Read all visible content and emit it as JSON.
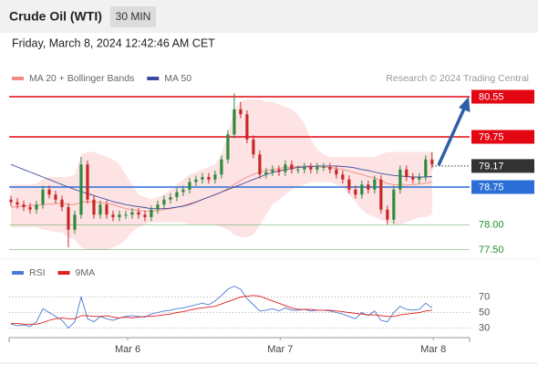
{
  "header": {
    "title": "Crude Oil (WTI)",
    "interval": "30 MIN",
    "timestamp": "Friday, March 8, 2024 12:42:46 AM CET",
    "credit": "Research © 2024 Trading Central"
  },
  "chart_data": [
    {
      "type": "candlestick",
      "xlim": [
        0,
        66.6
      ],
      "ylim": [
        77.25,
        81.1
      ],
      "up_color": "#2e8b3e",
      "down_color": "#c62828",
      "open": [
        78.5,
        78.45,
        78.4,
        78.35,
        78.3,
        78.4,
        78.7,
        78.6,
        78.5,
        78.35,
        77.9,
        78.2,
        79.2,
        78.5,
        78.2,
        78.4,
        78.2,
        78.15,
        78.2,
        78.2,
        78.25,
        78.2,
        78.15,
        78.3,
        78.4,
        78.5,
        78.55,
        78.65,
        78.7,
        78.85,
        78.9,
        78.95,
        78.9,
        79.0,
        79.3,
        79.8,
        80.3,
        80.2,
        79.7,
        79.4,
        79.0,
        79.05,
        79.1,
        79.05,
        79.2,
        79.1,
        79.1,
        79.15,
        79.1,
        79.15,
        79.15,
        79.1,
        79.0,
        78.9,
        78.7,
        78.6,
        78.8,
        78.7,
        78.9,
        78.3,
        78.1,
        78.7,
        79.1,
        78.95,
        78.9,
        78.95,
        79.3
      ],
      "high": [
        78.58,
        78.53,
        78.48,
        78.43,
        78.48,
        78.78,
        78.78,
        78.68,
        78.58,
        78.43,
        78.28,
        79.35,
        79.28,
        78.58,
        78.48,
        78.48,
        78.28,
        78.28,
        78.28,
        78.33,
        78.33,
        78.28,
        78.38,
        78.48,
        78.58,
        78.63,
        78.73,
        78.78,
        78.93,
        78.98,
        79.03,
        79.03,
        79.08,
        79.38,
        79.88,
        80.62,
        80.45,
        80.28,
        79.78,
        79.48,
        79.13,
        79.18,
        79.18,
        79.28,
        79.28,
        79.18,
        79.23,
        79.23,
        79.23,
        79.23,
        79.23,
        79.18,
        79.08,
        78.98,
        78.78,
        78.88,
        78.88,
        78.98,
        78.98,
        78.38,
        78.78,
        79.18,
        79.18,
        79.03,
        79.03,
        79.38,
        79.45
      ],
      "low": [
        78.37,
        78.32,
        78.27,
        78.22,
        78.22,
        78.32,
        78.52,
        78.42,
        78.27,
        77.55,
        77.82,
        78.12,
        78.42,
        78.12,
        78.12,
        78.12,
        78.07,
        78.07,
        78.12,
        78.12,
        78.12,
        78.07,
        78.07,
        78.22,
        78.32,
        78.42,
        78.47,
        78.57,
        78.62,
        78.77,
        78.82,
        78.82,
        78.82,
        78.92,
        79.22,
        79.72,
        80.12,
        79.62,
        79.32,
        78.92,
        78.92,
        78.97,
        78.97,
        78.97,
        79.02,
        79.02,
        79.02,
        79.02,
        79.02,
        79.07,
        79.02,
        78.92,
        78.82,
        78.62,
        78.52,
        78.52,
        78.62,
        78.62,
        78.22,
        78.0,
        78.02,
        78.62,
        78.87,
        78.82,
        78.82,
        78.87,
        79.12
      ],
      "close": [
        78.45,
        78.4,
        78.35,
        78.3,
        78.4,
        78.7,
        78.6,
        78.5,
        78.35,
        77.9,
        78.2,
        79.2,
        78.5,
        78.2,
        78.4,
        78.2,
        78.15,
        78.2,
        78.2,
        78.25,
        78.2,
        78.15,
        78.3,
        78.4,
        78.5,
        78.55,
        78.65,
        78.7,
        78.85,
        78.9,
        78.95,
        78.9,
        79.0,
        79.3,
        79.8,
        80.3,
        80.2,
        79.7,
        79.4,
        79.0,
        79.05,
        79.1,
        79.05,
        79.2,
        79.1,
        79.1,
        79.15,
        79.1,
        79.15,
        79.15,
        79.1,
        79.0,
        78.9,
        78.7,
        78.6,
        78.8,
        78.7,
        78.9,
        78.3,
        78.1,
        78.7,
        79.1,
        78.95,
        78.9,
        78.95,
        79.3,
        79.2
      ],
      "series": [
        {
          "name": "MA 20 + Bollinger Bands",
          "color": "#f28b82",
          "band_color": "#fde3e3",
          "values": [
            78.35,
            78.36,
            78.37,
            78.38,
            78.39,
            78.4,
            78.41,
            78.42,
            78.42,
            78.4,
            78.4,
            78.45,
            78.46,
            78.45,
            78.44,
            78.42,
            78.4,
            78.36,
            78.32,
            78.3,
            78.28,
            78.27,
            78.27,
            78.28,
            78.3,
            78.32,
            78.35,
            78.38,
            78.42,
            78.46,
            78.5,
            78.55,
            78.6,
            78.65,
            78.72,
            78.8,
            78.88,
            78.95,
            79.0,
            79.05,
            79.08,
            79.1,
            79.12,
            79.14,
            79.15,
            79.16,
            79.17,
            79.17,
            79.16,
            79.15,
            79.14,
            79.12,
            79.1,
            79.07,
            79.03,
            79.0,
            78.96,
            78.93,
            78.88,
            78.82,
            78.8,
            78.79,
            78.79,
            78.8,
            78.81,
            78.83,
            78.85
          ],
          "upper": [
            78.8,
            78.8,
            78.8,
            78.8,
            78.82,
            78.9,
            78.95,
            78.95,
            78.95,
            78.95,
            79.0,
            79.4,
            79.45,
            79.45,
            79.4,
            79.35,
            79.3,
            79.2,
            79.0,
            78.8,
            78.6,
            78.55,
            78.5,
            78.55,
            78.6,
            78.7,
            78.8,
            78.9,
            79.0,
            79.05,
            79.1,
            79.15,
            79.2,
            79.4,
            79.8,
            80.3,
            80.45,
            80.5,
            80.5,
            80.5,
            80.45,
            80.45,
            80.4,
            80.35,
            80.3,
            80.2,
            80.0,
            79.7,
            79.5,
            79.4,
            79.35,
            79.35,
            79.35,
            79.35,
            79.35,
            79.35,
            79.35,
            79.35,
            79.4,
            79.45,
            79.45,
            79.45,
            79.45,
            79.45,
            79.45,
            79.45,
            79.45
          ],
          "lower": [
            77.95,
            77.95,
            77.95,
            77.95,
            77.95,
            77.9,
            77.88,
            77.85,
            77.85,
            77.75,
            77.7,
            77.55,
            77.5,
            77.5,
            77.5,
            77.5,
            77.55,
            77.6,
            77.7,
            77.85,
            77.95,
            78.0,
            78.05,
            78.05,
            78.05,
            78.05,
            78.05,
            78.05,
            78.0,
            78.0,
            78.0,
            78.0,
            78.0,
            77.95,
            77.9,
            77.8,
            77.75,
            77.75,
            77.8,
            78.0,
            78.2,
            78.4,
            78.5,
            78.6,
            78.7,
            78.75,
            78.8,
            78.85,
            78.85,
            78.85,
            78.85,
            78.8,
            78.75,
            78.6,
            78.45,
            78.3,
            78.2,
            78.15,
            78.1,
            78.05,
            78.0,
            78.0,
            78.05,
            78.1,
            78.15,
            78.15,
            78.2
          ]
        },
        {
          "name": "MA 50",
          "color": "#3b4a9c",
          "values": [
            79.2,
            79.15,
            79.1,
            79.05,
            79.0,
            78.95,
            78.9,
            78.85,
            78.8,
            78.75,
            78.7,
            78.66,
            78.62,
            78.58,
            78.54,
            78.5,
            78.46,
            78.43,
            78.4,
            78.38,
            78.36,
            78.34,
            78.32,
            78.32,
            78.32,
            78.33,
            78.35,
            78.37,
            78.4,
            78.45,
            78.5,
            78.55,
            78.6,
            78.65,
            78.7,
            78.75,
            78.8,
            78.85,
            78.9,
            78.95,
            79.0,
            79.04,
            79.07,
            79.1,
            79.12,
            79.14,
            79.15,
            79.16,
            79.17,
            79.17,
            79.17,
            79.17,
            79.16,
            79.15,
            79.13,
            79.1,
            79.08,
            79.05,
            79.02,
            79.0,
            78.98,
            78.97,
            78.96,
            78.95,
            78.95,
            78.95,
            78.96
          ]
        }
      ],
      "levels": [
        {
          "value": 80.55,
          "color": "#e30613",
          "box": true
        },
        {
          "value": 79.75,
          "color": "#e30613",
          "box": true
        },
        {
          "value": 79.17,
          "color": "#333333",
          "box": true,
          "dotted": true
        },
        {
          "value": 78.75,
          "color": "#2b6fd6",
          "box": true
        },
        {
          "value": 78,
          "label": "78.00",
          "color": "#1f8f2f",
          "box": false
        },
        {
          "value": 77.5,
          "label": "77.50",
          "color": "#1f8f2f",
          "box": false
        }
      ]
    },
    {
      "type": "line",
      "xlim": [
        0,
        66.6
      ],
      "ylim": [
        20,
        90
      ],
      "yticks": [
        70,
        50,
        30
      ],
      "xticks": [
        {
          "value": 18.3,
          "label": "Mar 6"
        },
        {
          "value": 42.2,
          "label": "Mar 7"
        },
        {
          "value": 66.2,
          "label": "Mar 8"
        }
      ],
      "series": [
        {
          "name": "RSI",
          "color": "#4a78d4",
          "values": [
            35,
            33,
            34,
            32,
            38,
            55,
            50,
            45,
            40,
            30,
            38,
            70,
            42,
            38,
            45,
            42,
            40,
            43,
            45,
            46,
            45,
            44,
            48,
            50,
            52,
            53,
            55,
            56,
            58,
            60,
            62,
            60,
            65,
            72,
            80,
            84,
            80,
            68,
            60,
            52,
            53,
            55,
            52,
            56,
            53,
            53,
            54,
            52,
            53,
            53,
            52,
            50,
            48,
            45,
            42,
            50,
            46,
            52,
            40,
            38,
            50,
            58,
            54,
            53,
            54,
            62,
            56
          ]
        },
        {
          "name": "9MA",
          "color": "#e02020",
          "values": [
            36,
            36,
            35,
            35,
            35,
            37,
            40,
            42,
            43,
            42,
            42,
            46,
            46,
            45,
            45,
            46,
            44,
            43,
            44,
            43,
            44,
            45,
            45,
            46,
            47,
            48,
            50,
            51,
            53,
            55,
            56,
            57,
            58,
            61,
            64,
            67,
            70,
            71,
            72,
            71,
            68,
            65,
            62,
            59,
            56,
            54,
            54,
            54,
            53,
            53,
            53,
            52,
            51,
            50,
            49,
            48,
            47,
            47,
            46,
            45,
            45,
            47,
            48,
            49,
            50,
            52,
            53
          ]
        }
      ]
    }
  ]
}
